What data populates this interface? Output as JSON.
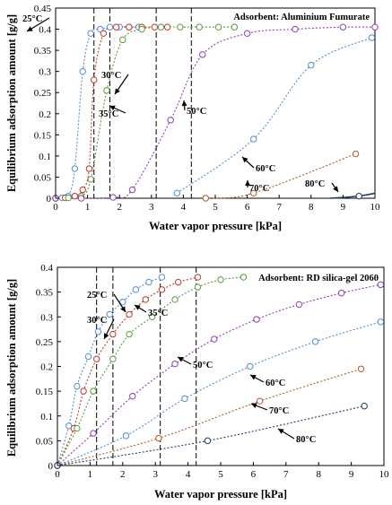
{
  "chart_data": [
    {
      "type": "scatter",
      "title": "",
      "annotation": "Adsorbent: Aluminium Fumurate",
      "xlabel": "Water vapor pressure [kPa]",
      "ylabel": "Equilibrium adsorption amount [g/g]",
      "xlim": [
        0,
        10
      ],
      "ylim": [
        0,
        0.45
      ],
      "xticks": [
        "0",
        "1",
        "2",
        "3",
        "4",
        "5",
        "6",
        "7",
        "8",
        "9",
        "10"
      ],
      "yticks": [
        "0",
        "0.05",
        "0.1",
        "0.15",
        "0.2",
        "0.25",
        "0.3",
        "0.35",
        "0.4",
        "0.45"
      ],
      "grid": false,
      "vertical_reference_lines_x": [
        1.2,
        1.7,
        3.15,
        4.25
      ],
      "series": [
        {
          "name": "25°C",
          "color": "#4f8fd4",
          "points": [
            [
              0,
              0
            ],
            [
              0.2,
              0.001
            ],
            [
              0.4,
              0.005
            ],
            [
              0.6,
              0.07
            ],
            [
              0.85,
              0.3
            ],
            [
              1.1,
              0.39
            ],
            [
              1.4,
              0.4
            ],
            [
              1.7,
              0.405
            ],
            [
              2.0,
              0.405
            ],
            [
              2.3,
              0.405
            ],
            [
              2.6,
              0.405
            ]
          ]
        },
        {
          "name": "30°C",
          "color": "#c0392b",
          "points": [
            [
              0,
              0
            ],
            [
              0.3,
              0.001
            ],
            [
              0.6,
              0.005
            ],
            [
              0.85,
              0.02
            ],
            [
              1.05,
              0.07
            ],
            [
              1.2,
              0.28
            ],
            [
              1.5,
              0.39
            ],
            [
              1.9,
              0.405
            ],
            [
              2.3,
              0.405
            ],
            [
              2.7,
              0.405
            ],
            [
              3.1,
              0.405
            ],
            [
              3.5,
              0.405
            ]
          ]
        },
        {
          "name": "35°C",
          "color": "#5a9a3a",
          "points": [
            [
              0,
              0
            ],
            [
              0.4,
              0.001
            ],
            [
              0.8,
              0.005
            ],
            [
              1.1,
              0.045
            ],
            [
              1.6,
              0.255
            ],
            [
              2.1,
              0.375
            ],
            [
              2.7,
              0.4
            ],
            [
              3.3,
              0.405
            ],
            [
              3.9,
              0.405
            ],
            [
              4.5,
              0.405
            ],
            [
              5.1,
              0.405
            ],
            [
              5.6,
              0.405
            ]
          ]
        },
        {
          "name": "50°C",
          "color": "#8e3fb5",
          "points": [
            [
              0,
              0
            ],
            [
              0.8,
              0.0
            ],
            [
              1.8,
              0.002
            ],
            [
              2.4,
              0.02
            ],
            [
              3.6,
              0.185
            ],
            [
              4.6,
              0.34
            ],
            [
              6.0,
              0.39
            ],
            [
              7.5,
              0.4
            ],
            [
              9.0,
              0.405
            ],
            [
              10.0,
              0.405
            ]
          ]
        },
        {
          "name": "60°C",
          "color": "#4f8fd4",
          "points": [
            [
              3.8,
              0.012
            ],
            [
              6.2,
              0.14
            ],
            [
              8.0,
              0.315
            ],
            [
              9.9,
              0.38
            ]
          ]
        },
        {
          "name": "70°C",
          "color": "#b05a28",
          "points": [
            [
              4.7,
              0.0
            ],
            [
              6.2,
              0.012
            ],
            [
              9.4,
              0.105
            ]
          ]
        },
        {
          "name": "80°C",
          "color": "#1f3c66",
          "points": [
            [
              9.5,
              0.005
            ]
          ]
        }
      ],
      "series_labels": [
        "25°C",
        "30°C",
        "35°C",
        "50°C",
        "60°C",
        "70°C",
        "80°C"
      ]
    },
    {
      "type": "scatter",
      "title": "",
      "annotation": "Adsorbent: RD silica-gel 2060",
      "xlabel": "Water vapor pressure [kPa]",
      "ylabel": "Equilibrium adsorption amount [g/g]",
      "xlim": [
        0,
        10
      ],
      "ylim": [
        0,
        0.4
      ],
      "xticks": [
        "0",
        "1",
        "2",
        "3",
        "4",
        "5",
        "6",
        "7",
        "8",
        "9",
        "10"
      ],
      "yticks": [
        "0",
        "0.05",
        "0.1",
        "0.15",
        "0.2",
        "0.25",
        "0.3",
        "0.35",
        "0.4"
      ],
      "grid": false,
      "vertical_reference_lines_x": [
        1.2,
        1.7,
        3.15,
        4.25
      ],
      "series": [
        {
          "name": "25°C",
          "color": "#4f8fd4",
          "points": [
            [
              0,
              0
            ],
            [
              0.35,
              0.08
            ],
            [
              0.6,
              0.16
            ],
            [
              0.95,
              0.22
            ],
            [
              1.25,
              0.27
            ],
            [
              1.6,
              0.305
            ],
            [
              2.0,
              0.33
            ],
            [
              2.4,
              0.355
            ],
            [
              2.8,
              0.37
            ],
            [
              3.2,
              0.38
            ]
          ]
        },
        {
          "name": "30°C",
          "color": "#c0392b",
          "points": [
            [
              0,
              0
            ],
            [
              0.5,
              0.075
            ],
            [
              0.8,
              0.15
            ],
            [
              1.2,
              0.215
            ],
            [
              1.7,
              0.265
            ],
            [
              2.2,
              0.305
            ],
            [
              2.7,
              0.335
            ],
            [
              3.2,
              0.355
            ],
            [
              3.7,
              0.37
            ],
            [
              4.3,
              0.38
            ]
          ]
        },
        {
          "name": "35°C",
          "color": "#5a9a3a",
          "points": [
            [
              0,
              0
            ],
            [
              0.6,
              0.075
            ],
            [
              1.1,
              0.15
            ],
            [
              1.7,
              0.215
            ],
            [
              2.2,
              0.265
            ],
            [
              2.9,
              0.3
            ],
            [
              3.6,
              0.335
            ],
            [
              4.3,
              0.36
            ],
            [
              5.0,
              0.375
            ],
            [
              5.7,
              0.38
            ]
          ]
        },
        {
          "name": "50°C",
          "color": "#8e3fb5",
          "points": [
            [
              0,
              0
            ],
            [
              1.1,
              0.065
            ],
            [
              2.3,
              0.14
            ],
            [
              3.6,
              0.205
            ],
            [
              4.8,
              0.255
            ],
            [
              6.1,
              0.295
            ],
            [
              7.4,
              0.325
            ],
            [
              8.7,
              0.348
            ],
            [
              9.9,
              0.365
            ]
          ]
        },
        {
          "name": "60°C",
          "color": "#4f8fd4",
          "points": [
            [
              0,
              0
            ],
            [
              2.1,
              0.06
            ],
            [
              3.9,
              0.135
            ],
            [
              5.9,
              0.2
            ],
            [
              7.9,
              0.25
            ],
            [
              9.9,
              0.29
            ]
          ]
        },
        {
          "name": "70°C",
          "color": "#b05a28",
          "points": [
            [
              0,
              0
            ],
            [
              3.1,
              0.055
            ],
            [
              6.2,
              0.13
            ],
            [
              9.3,
              0.195
            ]
          ]
        },
        {
          "name": "80°C",
          "color": "#1f3c66",
          "points": [
            [
              0,
              0
            ],
            [
              4.6,
              0.05
            ],
            [
              9.4,
              0.12
            ]
          ]
        }
      ],
      "series_labels": [
        "25°C",
        "30°C",
        "35°C",
        "50°C",
        "60°C",
        "70°C",
        "80°C"
      ]
    }
  ]
}
